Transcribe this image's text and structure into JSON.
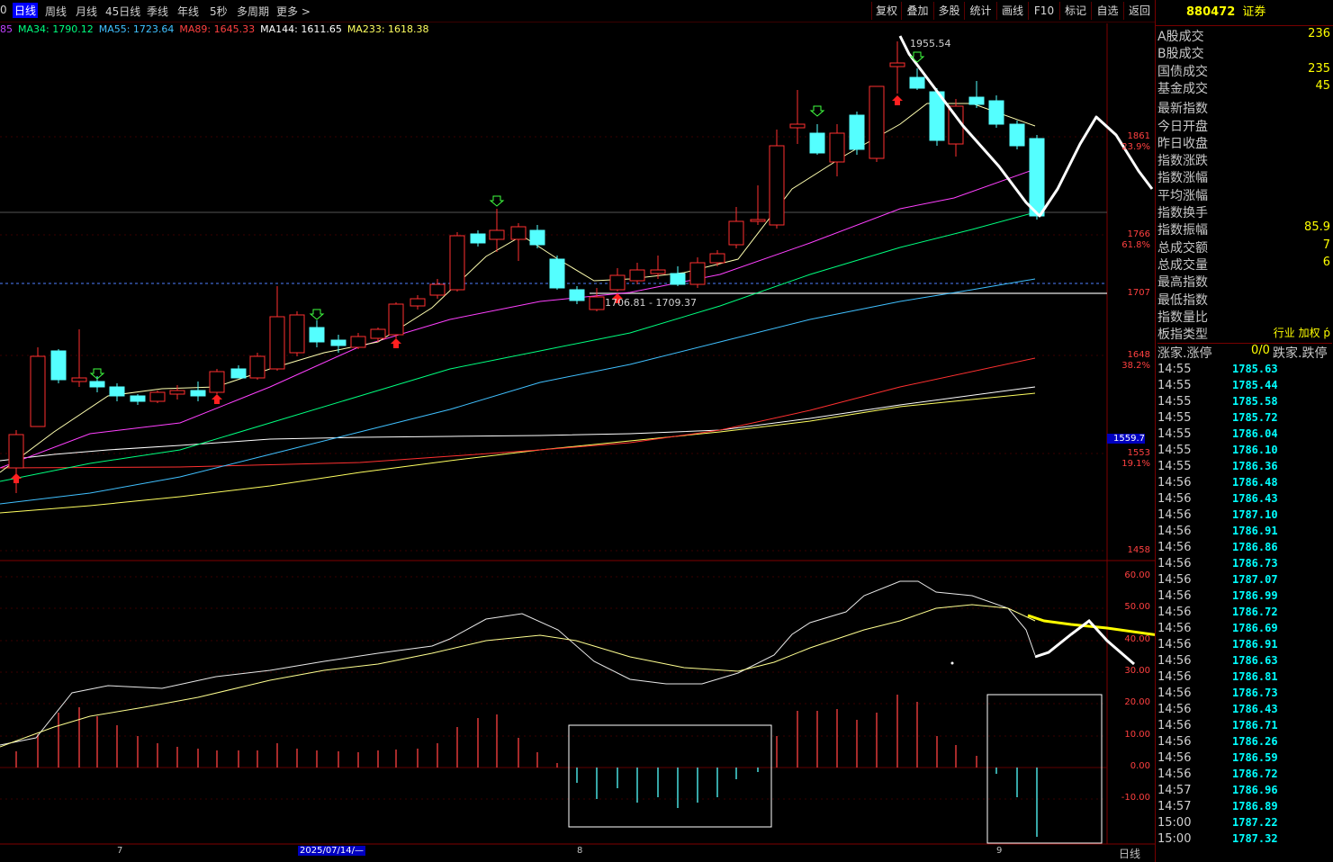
{
  "toolbar": {
    "periods": [
      "0",
      "日线",
      "周线",
      "月线",
      "45日线",
      "季线",
      "年线",
      "5秒",
      "多周期",
      "更多 >"
    ],
    "tools": [
      "复权",
      "叠加",
      "多股",
      "统计",
      "画线",
      "F10",
      "标记",
      "自选",
      "返回"
    ]
  },
  "ma": {
    "prefix": "85",
    "items": [
      {
        "text": "MA34: 1790.12",
        "color": "#00ff7f"
      },
      {
        "text": "MA55: 1723.64",
        "color": "#40c0ff"
      },
      {
        "text": "MA89: 1645.33",
        "color": "#ff4040"
      },
      {
        "text": "MA144: 1611.65",
        "color": "#ffffff"
      },
      {
        "text": "MA233: 1618.38",
        "color": "#ffff60"
      }
    ]
  },
  "price_axis": {
    "labels": [
      {
        "value": "1861",
        "pct": "23.9%"
      },
      {
        "value": "1766",
        "pct": "61.8%"
      },
      {
        "value": "1707",
        "pct": ""
      },
      {
        "value": "1648",
        "pct": "38.2%"
      },
      {
        "value": "1559.7",
        "pct": ""
      },
      {
        "value": "1553",
        "pct": "19.1%"
      },
      {
        "value": "1458",
        "pct": ""
      }
    ]
  },
  "annotations": {
    "high": "1955.54",
    "range": "1706.81 - 1709.37"
  },
  "macd_axis": [
    "60.00",
    "50.00",
    "40.00",
    "30.00",
    "20.00",
    "10.00",
    "0.00",
    "-10.00"
  ],
  "bottom_axis": {
    "month7": "7",
    "date": "2025/07/14/—",
    "month8": "8",
    "month9": "9",
    "period_label": "日线"
  },
  "right_panel": {
    "code": "880472",
    "name": "证券",
    "stats": [
      {
        "label": "A股成交",
        "value": "236"
      },
      {
        "label": "B股成交",
        "value": ""
      },
      {
        "label": "国债成交",
        "value": "235"
      },
      {
        "label": "基金成交",
        "value": "45"
      },
      {
        "label": "最新指数",
        "value": ""
      },
      {
        "label": "今日开盘",
        "value": ""
      },
      {
        "label": "昨日收盘",
        "value": ""
      },
      {
        "label": "指数涨跌",
        "value": ""
      },
      {
        "label": "指数涨幅",
        "value": ""
      },
      {
        "label": "平均涨幅",
        "value": ""
      },
      {
        "label": "指数换手",
        "value": ""
      },
      {
        "label": "指数振幅",
        "value": "85.9"
      },
      {
        "label": "总成交额",
        "value": "7"
      },
      {
        "label": "总成交量",
        "value": "6"
      },
      {
        "label": "最高指数",
        "value": ""
      },
      {
        "label": "最低指数",
        "value": ""
      },
      {
        "label": "指数量比",
        "value": ""
      },
      {
        "label": "板指类型",
        "value": "行业 加权 ṕ"
      }
    ],
    "updown": {
      "left": "涨家.涨停",
      "mid": "0/0",
      "right": "跌家.跌停"
    },
    "ticks": [
      [
        "14:55",
        "1785.63"
      ],
      [
        "14:55",
        "1785.44"
      ],
      [
        "14:55",
        "1785.58"
      ],
      [
        "14:55",
        "1785.72"
      ],
      [
        "14:55",
        "1786.04"
      ],
      [
        "14:55",
        "1786.10"
      ],
      [
        "14:55",
        "1786.36"
      ],
      [
        "14:56",
        "1786.48"
      ],
      [
        "14:56",
        "1786.43"
      ],
      [
        "14:56",
        "1787.10"
      ],
      [
        "14:56",
        "1786.91"
      ],
      [
        "14:56",
        "1786.86"
      ],
      [
        "14:56",
        "1786.73"
      ],
      [
        "14:56",
        "1787.07"
      ],
      [
        "14:56",
        "1786.99"
      ],
      [
        "14:56",
        "1786.72"
      ],
      [
        "14:56",
        "1786.69"
      ],
      [
        "14:56",
        "1786.91"
      ],
      [
        "14:56",
        "1786.63"
      ],
      [
        "14:56",
        "1786.81"
      ],
      [
        "14:56",
        "1786.73"
      ],
      [
        "14:56",
        "1786.43"
      ],
      [
        "14:56",
        "1786.71"
      ],
      [
        "14:56",
        "1786.26"
      ],
      [
        "14:56",
        "1786.59"
      ],
      [
        "14:56",
        "1786.72"
      ],
      [
        "14:57",
        "1786.96"
      ],
      [
        "14:57",
        "1786.89"
      ],
      [
        "15:00",
        "1787.22"
      ],
      [
        "15:00",
        "1787.32"
      ]
    ]
  }
}
